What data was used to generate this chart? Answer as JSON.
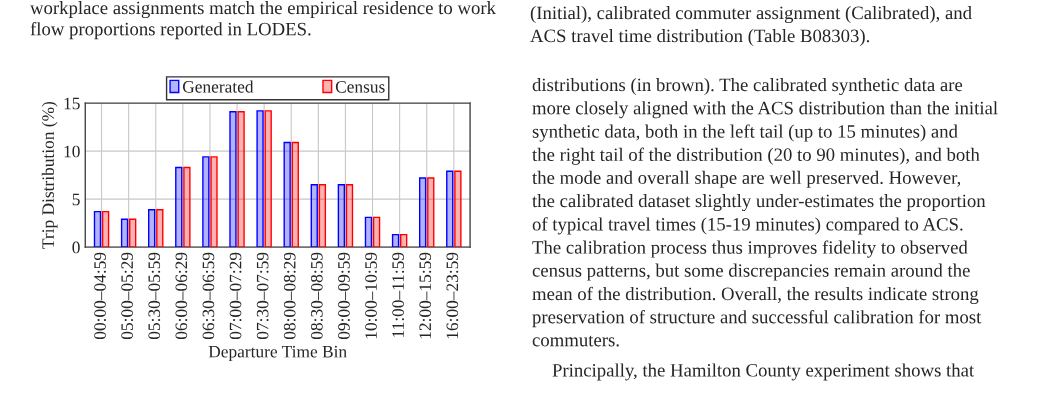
{
  "chart_data": {
    "type": "bar",
    "xlabel": "Departure Time Bin",
    "ylabel": "Trip Distribution (%)",
    "categories": [
      "00:00–04:59",
      "05:00–05:29",
      "05:30–05:59",
      "06:00–06:29",
      "06:30–06:59",
      "07:00–07:29",
      "07:30–07:59",
      "08:00–08:29",
      "08:30–08:59",
      "09:00–09:59",
      "10:00–10:59",
      "11:00–11:59",
      "12:00–15:59",
      "16:00–23:59"
    ],
    "series": [
      {
        "name": "Generated",
        "color": "#0000ff",
        "values": [
          3.7,
          2.9,
          3.9,
          8.3,
          9.4,
          14.1,
          14.2,
          10.9,
          6.5,
          6.5,
          3.1,
          1.3,
          7.2,
          7.9
        ]
      },
      {
        "name": "Census",
        "color": "#ff0000",
        "values": [
          3.7,
          2.9,
          3.9,
          8.3,
          9.4,
          14.1,
          14.2,
          10.9,
          6.5,
          6.5,
          3.1,
          1.3,
          7.2,
          7.9
        ]
      }
    ],
    "ylim": [
      0,
      15
    ],
    "yticks": [
      0,
      5,
      10,
      15
    ],
    "grid": true,
    "legend": "top",
    "annotations": [
      "workplace assignments match the empirical residence to work",
      "flow proportions reported in LODES.",
      "(Initial), calibrated commuter assignment (Calibrated), and",
      "ACS travel time distribution (Table B08303).",
      "distributions (in brown). The calibrated synthetic data are",
      "more closely aligned with the ACS distribution than the initial",
      "synthetic data, both in the left tail (up to 15 minutes) and",
      "the right tail of the distribution (20 to 90 minutes), and both",
      "the mode and overall shape are well preserved. However,",
      "the calibrated dataset slightly under-estimates the proportion",
      "of typical travel times (15-19 minutes) compared to ACS.",
      "The calibration process thus improves fidelity to observed",
      "census patterns, but some discrepancies remain around the",
      "mean of the distribution. Overall, the results indicate strong",
      "preservation of structure and successful calibration for most",
      "commuters.",
      "Principally, the Hamilton County experiment shows that"
    ]
  }
}
